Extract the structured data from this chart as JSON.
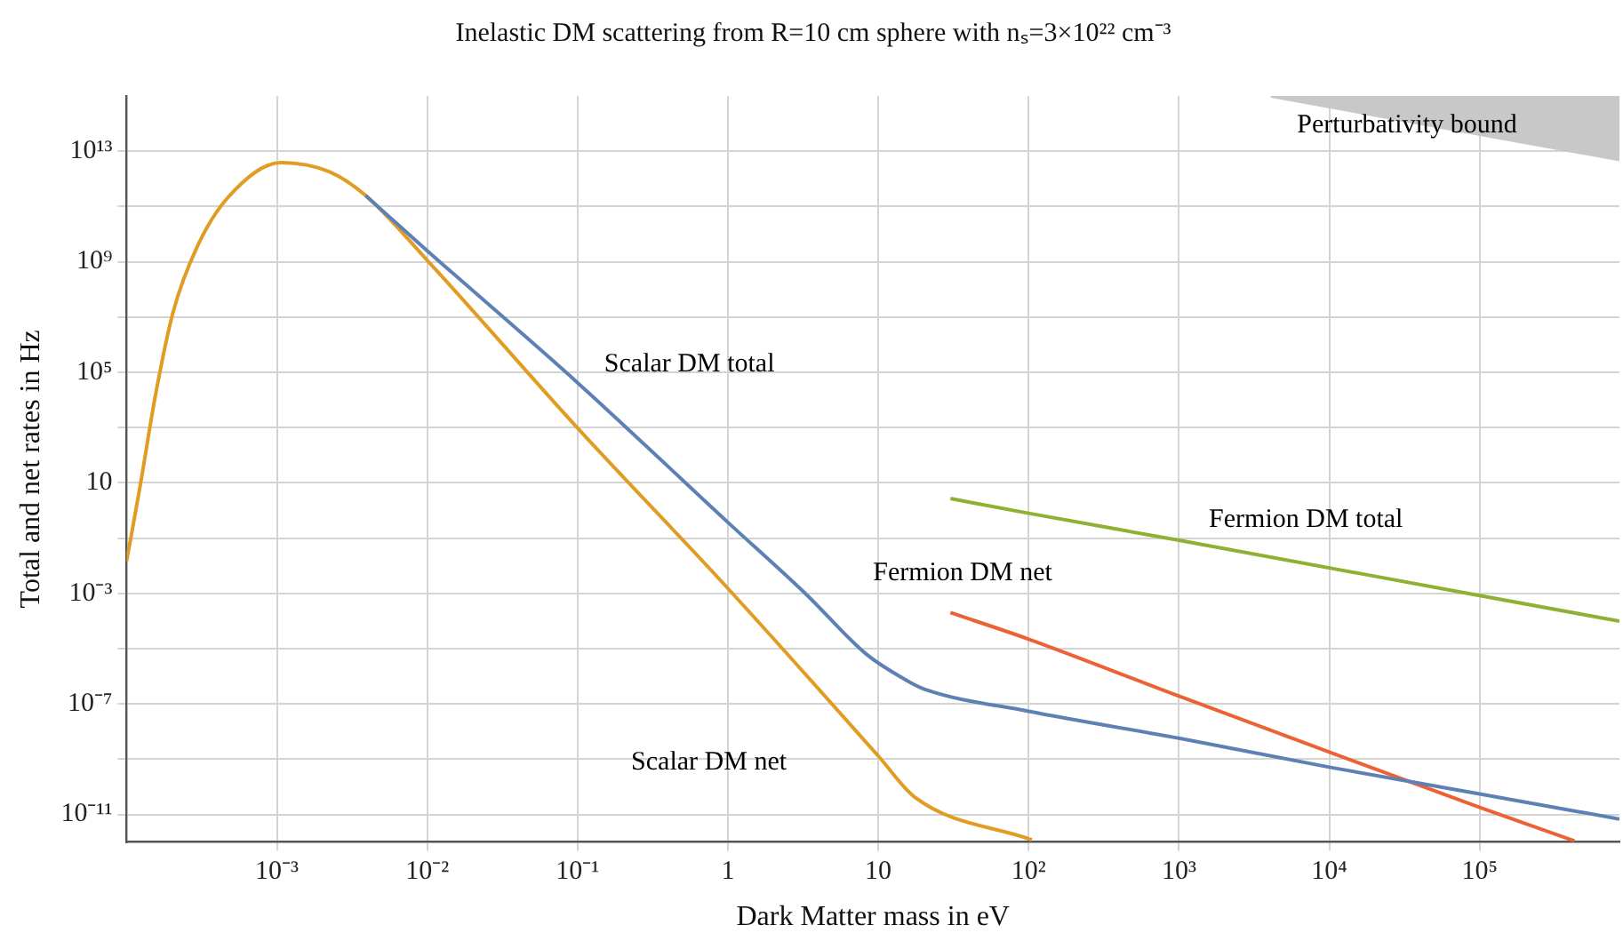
{
  "chart_data": {
    "type": "line",
    "title": "Inelastic DM scattering from R=10 cm sphere with nₛ=3×10²² cm⁻³",
    "xlabel": "Dark Matter mass in eV",
    "ylabel": "Total and net rates in Hz",
    "log": "xy",
    "grid": true,
    "legend": false,
    "marker": "none",
    "xlim": [
      0.0001,
      851000
    ],
    "ylim": [
      1e-12,
      1000000000000000.0
    ],
    "xticks": [
      {
        "value": 0.001,
        "label": "10⁻³"
      },
      {
        "value": 0.01,
        "label": "10⁻²"
      },
      {
        "value": 0.1,
        "label": "10⁻¹"
      },
      1,
      10,
      {
        "value": 100,
        "label": "10²"
      },
      {
        "value": 1000,
        "label": "10³"
      },
      {
        "value": 10000,
        "label": "10⁴"
      },
      {
        "value": 100000,
        "label": "10⁵"
      }
    ],
    "yticks": [
      {
        "value": 1e-11,
        "label": "10⁻¹¹"
      },
      {
        "value": 1e-09,
        "label": null
      },
      {
        "value": 1e-07,
        "label": "10⁻⁷"
      },
      {
        "value": 1e-05,
        "label": null
      },
      {
        "value": 0.001,
        "label": "10⁻³"
      },
      {
        "value": 0.1,
        "label": null
      },
      10,
      {
        "value": 1000,
        "label": null
      },
      {
        "value": 100000,
        "label": "10⁵"
      },
      {
        "value": 10000000,
        "label": null
      },
      {
        "value": 1000000000,
        "label": "10⁹"
      },
      {
        "value": 100000000000,
        "label": null
      },
      {
        "value": 10000000000000,
        "label": "10¹³"
      }
    ],
    "series": [
      {
        "name": "Scalar DM total",
        "color": "#5e81b5",
        "x": [
          0.00389,
          0.00977,
          0.0977,
          1,
          3.31,
          8.32,
          15.8,
          20.9,
          100,
          1000,
          10000,
          100000,
          851000
        ],
        "values": [
          250000000000,
          2800000000,
          47000,
          0.37,
          0.00093,
          6.3e-06,
          6.6e-07,
          3.2e-07,
          5.4e-08,
          5.7e-09,
          5.1e-10,
          5.5e-11,
          6.8e-12
        ]
      },
      {
        "name": "Scalar DM net",
        "color": "#e19c24",
        "x": [
          0.0001,
          0.000123,
          0.000155,
          0.000204,
          0.000295,
          0.000468,
          0.00107,
          0.00224,
          0.00389,
          0.00977,
          0.0977,
          1,
          10,
          17.4,
          105
        ],
        "values": [
          0.0145,
          7.4,
          13000,
          15000000,
          3500000000,
          200000000000,
          3900000000000,
          1800000000000,
          250000000000,
          1300000000,
          1100,
          0.0015,
          1.3e-09,
          4.3e-11,
          1.2e-12
        ]
      },
      {
        "name": "Fermion DM total",
        "color": "#8fb032",
        "x": [
          30.2,
          100,
          1000,
          100000,
          851000
        ],
        "values": [
          2.7,
          0.79,
          0.083,
          0.00083,
          9.8e-05
        ]
      },
      {
        "name": "Fermion DM net",
        "color": "#eb6235",
        "x": [
          30.2,
          100,
          1000,
          10000,
          100000,
          427000
        ],
        "values": [
          0.0002,
          2.2e-05,
          1.9e-07,
          1.8e-09,
          1.8e-11,
          1.1e-12
        ]
      },
      {
        "name": "Perturbativity bound",
        "type": "area",
        "color": "#c8c8c8",
        "x": [
          4100,
          851000
        ],
        "values": [
          1000000000000000.0,
          5000000000000
        ]
      }
    ]
  }
}
